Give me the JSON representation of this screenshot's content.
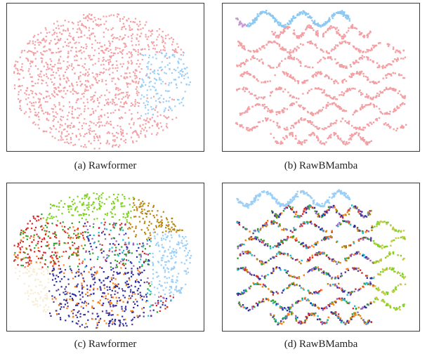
{
  "chart_data": [
    {
      "type": "scatter",
      "caption": "(a) Rawformer",
      "title": "",
      "xlabel": "",
      "ylabel": "",
      "grid": false,
      "series": [
        {
          "color": "#f2a0a4",
          "approx_share": 0.85
        },
        {
          "color": "#9ccff7",
          "approx_share": 0.15
        }
      ]
    },
    {
      "type": "scatter",
      "caption": "(b) RawBMamba",
      "title": "",
      "xlabel": "",
      "ylabel": "",
      "grid": false,
      "series": [
        {
          "color": "#f2a0a4",
          "approx_share": 0.85
        },
        {
          "color": "#8cc8f2",
          "approx_share": 0.13
        },
        {
          "color": "#c79ad6",
          "approx_share": 0.02
        }
      ]
    },
    {
      "type": "scatter",
      "caption": "(c) Rawformer",
      "title": "",
      "xlabel": "",
      "ylabel": "",
      "grid": false,
      "series": [
        {
          "color": "#9ccff7"
        },
        {
          "color": "#7ed321"
        },
        {
          "color": "#d62728"
        },
        {
          "color": "#2ca02c"
        },
        {
          "color": "#2b2ba8"
        },
        {
          "color": "#17becf"
        },
        {
          "color": "#b8860b"
        },
        {
          "color": "#ff7f0e"
        },
        {
          "color": "#9467bd"
        },
        {
          "color": "#f7ecd4"
        },
        {
          "color": "#5a3e8a"
        }
      ]
    },
    {
      "type": "scatter",
      "caption": "(d) RawBMamba",
      "title": "",
      "xlabel": "",
      "ylabel": "",
      "grid": false,
      "series": [
        {
          "color": "#9ccff7"
        },
        {
          "color": "#7ed321"
        },
        {
          "color": "#c9c84a"
        },
        {
          "color": "#d62728"
        },
        {
          "color": "#2ca02c"
        },
        {
          "color": "#2b2ba8"
        },
        {
          "color": "#17becf"
        },
        {
          "color": "#b8860b"
        },
        {
          "color": "#ff7f0e"
        },
        {
          "color": "#9467bd"
        },
        {
          "color": "#5a3e8a"
        }
      ]
    }
  ]
}
